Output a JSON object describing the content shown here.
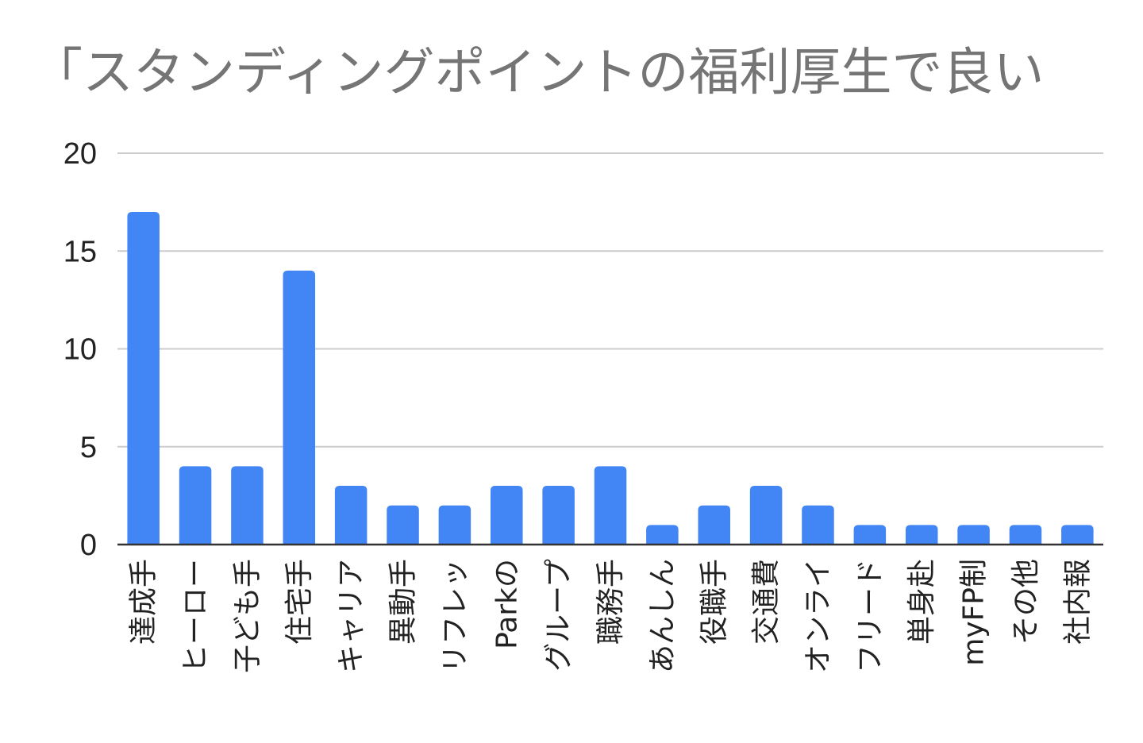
{
  "chart_data": {
    "type": "bar",
    "title": "「スタンディングポイントの福利厚生で良い",
    "xlabel": "",
    "ylabel": "",
    "ylim": [
      0,
      20
    ],
    "yticks": [
      0,
      5,
      10,
      15,
      20
    ],
    "grid": true,
    "legend": "none",
    "bar_color": "#4285F4",
    "categories": [
      "達成手",
      "ヒーロー",
      "子ども手",
      "住宅手",
      "キャリア",
      "異動手",
      "リフレッ",
      "Parkの",
      "グループ",
      "職務手",
      "あんしん",
      "役職手",
      "交通費",
      "オンライ",
      "フリード",
      "単身赴",
      "myFP制",
      "その他",
      "社内報"
    ],
    "values": [
      17,
      4,
      4,
      14,
      3,
      2,
      2,
      3,
      3,
      4,
      1,
      2,
      3,
      2,
      1,
      1,
      1,
      1,
      1
    ]
  }
}
